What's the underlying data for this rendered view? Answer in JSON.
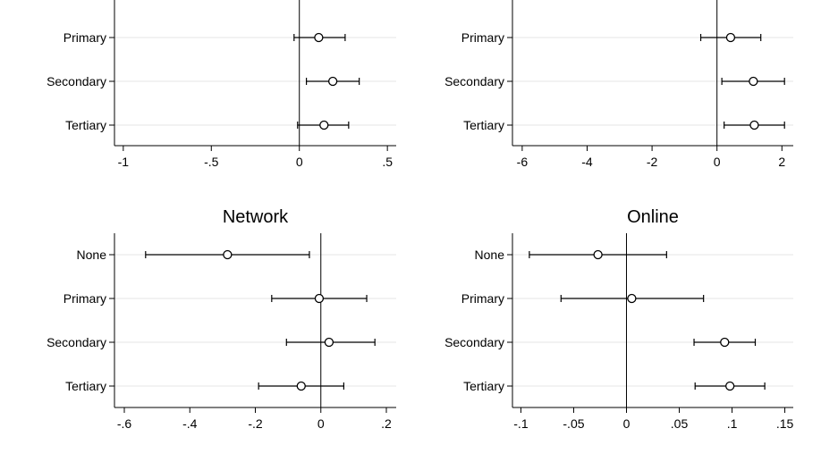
{
  "chart_data": [
    {
      "type": "scatter",
      "subtype": "coefficient-plot",
      "title": "",
      "xlabel": "",
      "ylabel": "",
      "xlim": [
        -1.05,
        0.55
      ],
      "x_ticks": [
        -1,
        -0.5,
        0,
        0.5
      ],
      "x_tick_labels": [
        "-1",
        "-.5",
        "0",
        ".5"
      ],
      "categories": [
        "Primary",
        "Secondary",
        "Tertiary"
      ],
      "estimates": [
        0.11,
        0.19,
        0.14
      ],
      "ci_low": [
        -0.03,
        0.04,
        -0.01
      ],
      "ci_high": [
        0.26,
        0.34,
        0.28
      ],
      "reference_line": 0,
      "grid": "horizontal"
    },
    {
      "type": "scatter",
      "subtype": "coefficient-plot",
      "title": "",
      "xlabel": "",
      "ylabel": "",
      "xlim": [
        -6.3,
        2.35
      ],
      "x_ticks": [
        -6,
        -4,
        -2,
        0,
        2
      ],
      "x_tick_labels": [
        "-6",
        "-4",
        "-2",
        "0",
        "2"
      ],
      "categories": [
        "Primary",
        "Secondary",
        "Tertiary"
      ],
      "estimates": [
        0.42,
        1.12,
        1.15
      ],
      "ci_low": [
        -0.5,
        0.15,
        0.22
      ],
      "ci_high": [
        1.35,
        2.08,
        2.08
      ],
      "reference_line": 0,
      "grid": "horizontal"
    },
    {
      "type": "scatter",
      "subtype": "coefficient-plot",
      "title": "Network",
      "xlabel": "",
      "ylabel": "",
      "xlim": [
        -0.63,
        0.23
      ],
      "x_ticks": [
        -0.6,
        -0.4,
        -0.2,
        0,
        0.2
      ],
      "x_tick_labels": [
        "-.6",
        "-.4",
        "-.2",
        "0",
        ".2"
      ],
      "categories": [
        "None",
        "Primary",
        "Secondary",
        "Tertiary"
      ],
      "estimates": [
        -0.285,
        -0.005,
        0.025,
        -0.06
      ],
      "ci_low": [
        -0.535,
        -0.15,
        -0.105,
        -0.19
      ],
      "ci_high": [
        -0.035,
        0.14,
        0.165,
        0.07
      ],
      "reference_line": 0,
      "grid": "horizontal"
    },
    {
      "type": "scatter",
      "subtype": "coefficient-plot",
      "title": "Online",
      "xlabel": "",
      "ylabel": "",
      "xlim": [
        -0.108,
        0.158
      ],
      "x_ticks": [
        -0.1,
        -0.05,
        0,
        0.05,
        0.1,
        0.15
      ],
      "x_tick_labels": [
        "-.1",
        "-.05",
        "0",
        ".05",
        ".1",
        ".15"
      ],
      "categories": [
        "None",
        "Primary",
        "Secondary",
        "Tertiary"
      ],
      "estimates": [
        -0.027,
        0.005,
        0.093,
        0.098
      ],
      "ci_low": [
        -0.092,
        -0.062,
        0.064,
        0.065
      ],
      "ci_high": [
        0.038,
        0.073,
        0.122,
        0.131
      ],
      "reference_line": 0,
      "grid": "horizontal"
    }
  ]
}
